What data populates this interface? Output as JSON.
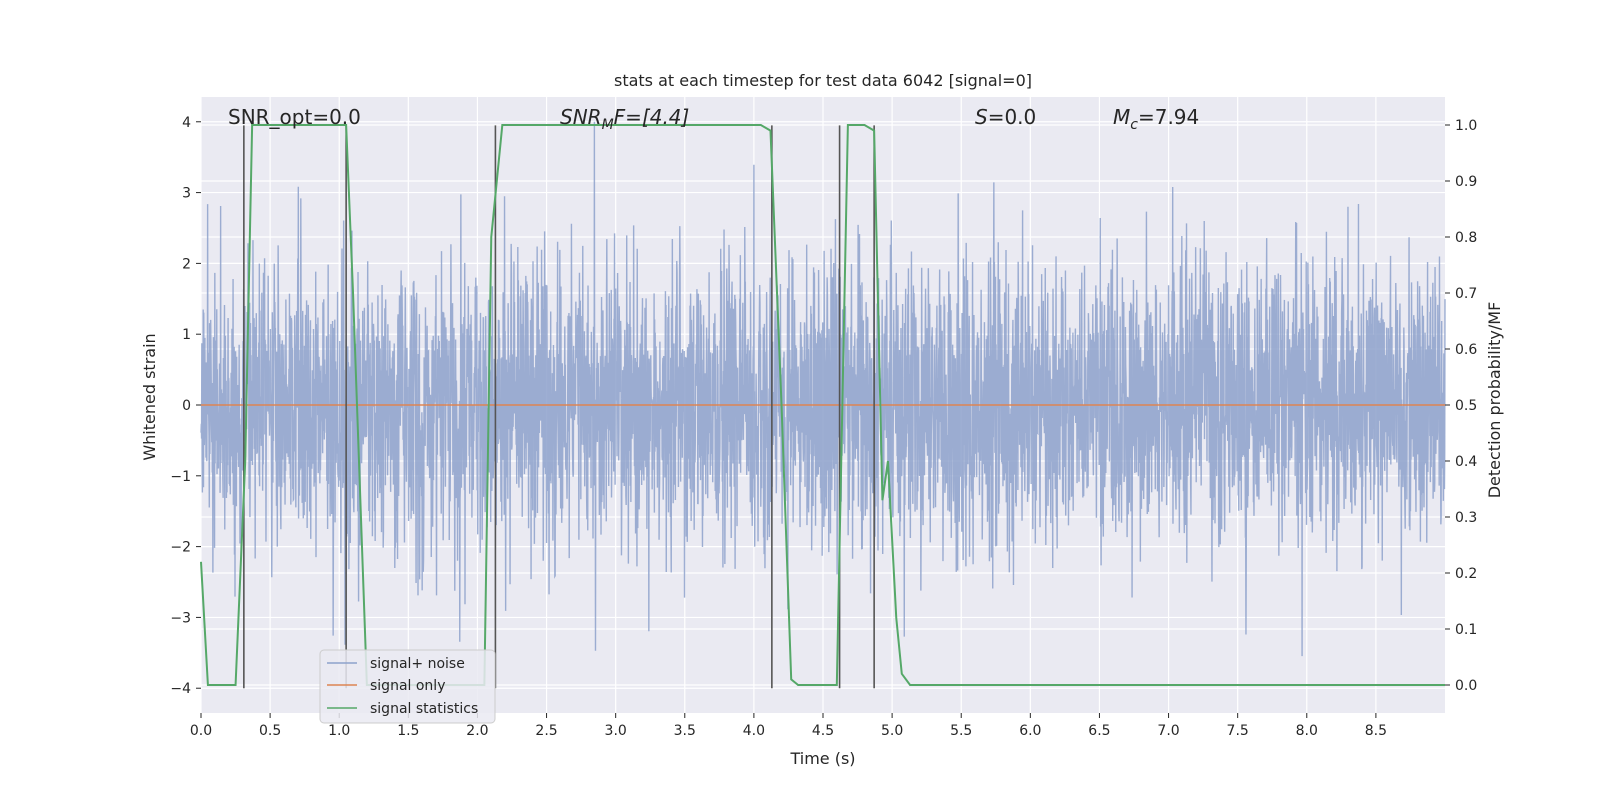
{
  "chart_data": {
    "type": "line",
    "title": "stats at each timestep for test data 6042 [signal=0]",
    "xlabel": "Time (s)",
    "ylabel_left": "Whitened strain",
    "ylabel_right": "Detection probability/MF",
    "xlim": [
      0.0,
      9.0
    ],
    "ylim_left": [
      -4.35,
      4.35
    ],
    "ylim_right": [
      -0.05,
      1.05
    ],
    "x_ticks": [
      "0.0",
      "0.5",
      "1.0",
      "1.5",
      "2.0",
      "2.5",
      "3.0",
      "3.5",
      "4.0",
      "4.5",
      "5.0",
      "5.5",
      "6.0",
      "6.5",
      "7.0",
      "7.5",
      "8.0",
      "8.5"
    ],
    "y_ticks_left": [
      "4",
      "3",
      "2",
      "1",
      "0",
      "−1",
      "−2",
      "−3",
      "−4"
    ],
    "y_ticks_right": [
      "1.0",
      "0.9",
      "0.8",
      "0.7",
      "0.6",
      "0.5",
      "0.4",
      "0.3",
      "0.2",
      "0.1",
      "0.0"
    ],
    "annotations": {
      "snr_opt": "SNR_opt=0.0",
      "snr_mf_main": "SNR",
      "snr_mf_sub": "M",
      "snr_mf_rest": "F=[4.4]",
      "s_main": "S",
      "s_rest": "=0.0",
      "mc_main": "M",
      "mc_sub": "c",
      "mc_rest": "=7.94"
    },
    "legend": {
      "position": "lower-left",
      "entries": [
        "signal+ noise",
        "signal only",
        "signal statistics"
      ]
    },
    "colors": {
      "noise": "#8da1cb",
      "signal": "#dd8452",
      "statistics": "#55a868",
      "vlines": "#555555",
      "background": "#eaeaf2",
      "grid": "#ffffff"
    },
    "series": [
      {
        "name": "signal+ noise",
        "axis": "left",
        "style": "noise band",
        "sample_spacing": 0.002,
        "std": 1.0,
        "clip": [
          -4.0,
          4.0
        ]
      },
      {
        "name": "signal only",
        "axis": "left",
        "x": [
          0.0,
          9.0
        ],
        "y": [
          0.0,
          0.0
        ]
      },
      {
        "name": "signal statistics",
        "axis": "right",
        "x": [
          0.0,
          0.05,
          0.1,
          0.25,
          0.32,
          0.37,
          1.05,
          1.1,
          1.2,
          2.05,
          2.1,
          2.18,
          4.05,
          4.12,
          4.2,
          4.27,
          4.32,
          4.6,
          4.64,
          4.68,
          4.8,
          4.87,
          4.93,
          4.97,
          5.03,
          5.07,
          5.13,
          8.9,
          9.0
        ],
        "y": [
          0.22,
          0.0,
          0.0,
          0.0,
          0.4,
          1.0,
          1.0,
          0.7,
          0.0,
          0.0,
          0.8,
          1.0,
          1.0,
          0.99,
          0.5,
          0.01,
          0.0,
          0.0,
          0.5,
          1.0,
          1.0,
          0.99,
          0.33,
          0.4,
          0.12,
          0.02,
          0.0,
          0.0,
          0.0
        ]
      }
    ],
    "vlines": [
      0.31,
      1.05,
      2.13,
      4.13,
      4.62,
      4.87
    ]
  }
}
